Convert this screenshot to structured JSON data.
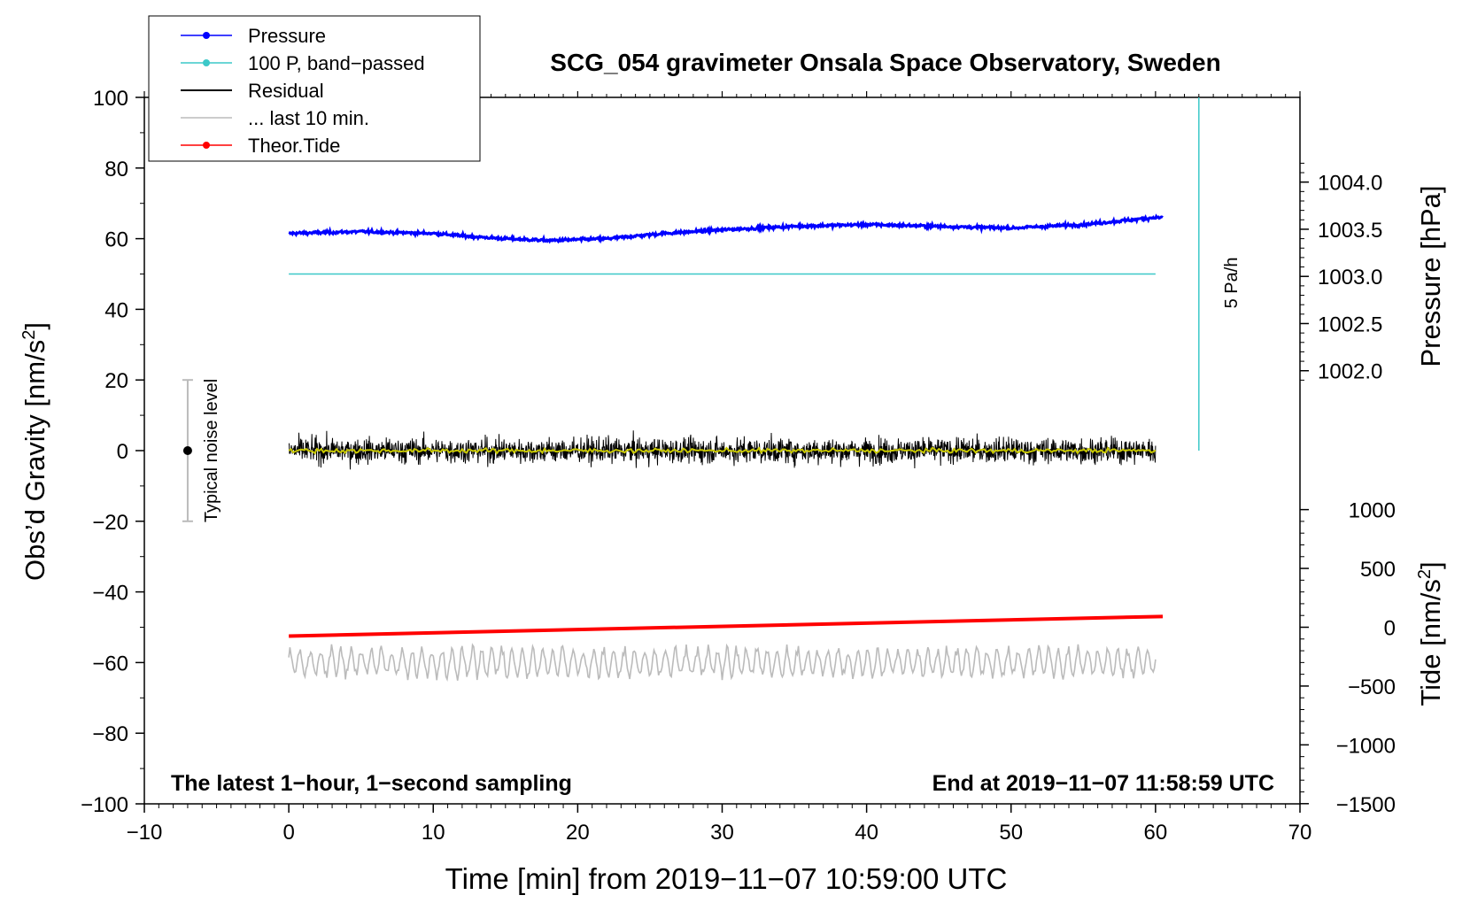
{
  "chart_data": {
    "type": "line",
    "title": "SCG_054 gravimeter Onsala Space Observatory, Sweden",
    "xlabel": "Time [min] from 2019−11−07 10:59:00 UTC",
    "ylabel_left": "Obs’d Gravity [nm/s",
    "ylabel_left_sup": "2",
    "ylabel_left_end": "]",
    "ylabel_pressure": "Pressure [hPa]",
    "ylabel_tide": "Tide [nm/s",
    "ylabel_tide_sup": "2",
    "ylabel_tide_end": "]",
    "xlim": [
      -10,
      70
    ],
    "ylim": [
      -100,
      100
    ],
    "x_ticks": [
      -10,
      0,
      10,
      20,
      30,
      40,
      50,
      60,
      70
    ],
    "x_tick_labels": [
      "−10",
      "0",
      "10",
      "20",
      "30",
      "40",
      "50",
      "60",
      "70"
    ],
    "y_ticks": [
      100,
      80,
      60,
      40,
      20,
      0,
      -20,
      -40,
      -60,
      -80,
      -100
    ],
    "y_tick_labels": [
      "100",
      "80",
      "60",
      "40",
      "20",
      "0",
      "−20",
      "−40",
      "−60",
      "−80",
      "−100"
    ],
    "pressure_axis": {
      "ticks": [
        1004.0,
        1003.5,
        1003.0,
        1002.5,
        1002.0
      ],
      "tick_labels": [
        "1004.0",
        "1003.5",
        "1003.0",
        "1002.5",
        "1002.0"
      ],
      "ref_gravity": 60,
      "ref_pressure": 1003.4,
      "gravity_per_hpa": 26.7
    },
    "tide_axis": {
      "ticks": [
        1000,
        500,
        0,
        -500,
        -1000,
        -1500
      ],
      "tick_labels": [
        "1000",
        "500",
        "0",
        "−500",
        "−1000",
        "−1500"
      ],
      "ref_gravity": -50,
      "ref_tide": 0,
      "gravity_per_unit": 0.0333
    },
    "legend": {
      "placement": "top-left",
      "entries": [
        {
          "label": "Pressure",
          "color": "#0000ff",
          "marker": true
        },
        {
          "label": "100 P, band−passed",
          "color": "#3cc8c8",
          "marker": true
        },
        {
          "label": "Residual",
          "color": "#000000",
          "marker": false
        },
        {
          "label": "... last 10 min.",
          "color": "#bbbbbb",
          "marker": false
        },
        {
          "label": "Theor.Tide",
          "color": "#ff0000",
          "marker": true
        }
      ]
    },
    "series": [
      {
        "name": "Pressure",
        "color": "#0000ff",
        "x": [
          0,
          5,
          10,
          13,
          15,
          18,
          22,
          26,
          30,
          35,
          40,
          45,
          50,
          55,
          60
        ],
        "y": [
          61.5,
          62,
          61.5,
          60.5,
          60,
          59.5,
          60,
          61.5,
          62.5,
          63.5,
          64,
          63.5,
          63,
          64,
          66
        ]
      },
      {
        "name": "100 P, band−passed",
        "color": "#3cc8c8",
        "x": [
          0,
          60
        ],
        "y": [
          50,
          50
        ]
      },
      {
        "name": "Residual",
        "color": "#000000",
        "x_range": [
          0,
          60
        ],
        "center": 0,
        "noise_amplitude": 4
      },
      {
        "name": "Residual smoothed",
        "color": "#c8c800",
        "x_range": [
          0,
          60
        ],
        "center": 0
      },
      {
        "name": "... last 10 min.",
        "color": "#bbbbbb",
        "x_range": [
          0,
          60
        ],
        "center": -60,
        "noise_amplitude": 4
      },
      {
        "name": "Theor.Tide",
        "color": "#ff0000",
        "x": [
          0,
          60
        ],
        "y": [
          -52.5,
          -47
        ]
      }
    ],
    "noise_bar": {
      "x": -7,
      "low": -20,
      "high": 20,
      "center": 0,
      "label": "Typical noise level"
    },
    "rate_bar": {
      "x": 63,
      "low": 0,
      "high": 100,
      "label": "5 Pa/h"
    },
    "annotation_left": "The latest 1−hour, 1−second sampling",
    "annotation_right": "End at 2019−11−07 11:58:59 UTC"
  }
}
